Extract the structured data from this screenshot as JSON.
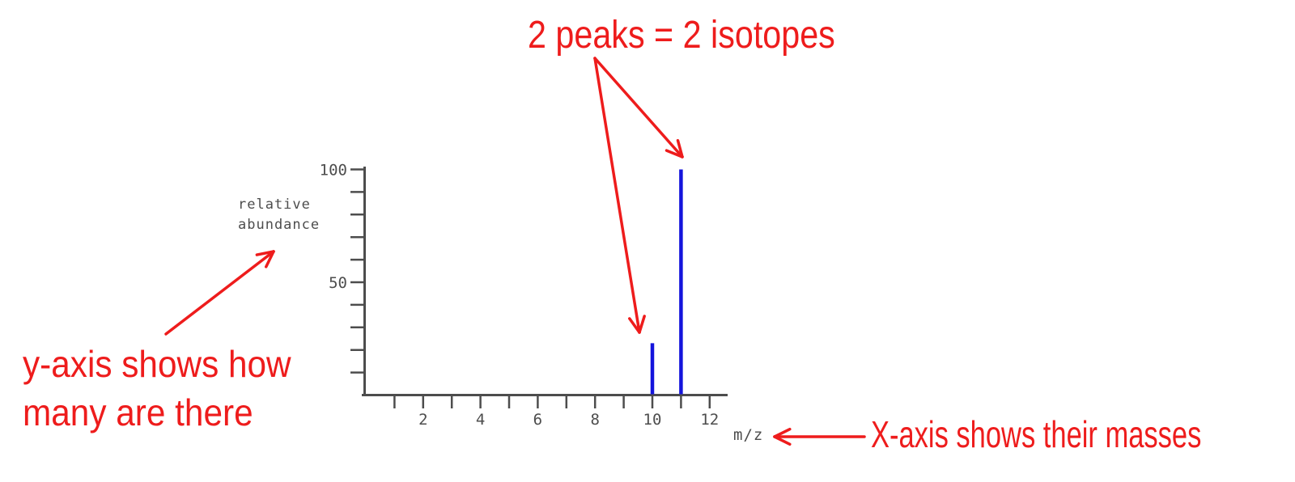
{
  "colors": {
    "background": "#ffffff",
    "annotation_red": "#ee1c1c",
    "peak_blue": "#1414dc",
    "axis_gray": "#4d4d4d"
  },
  "annotations": {
    "top": "2 peaks = 2 isotopes",
    "left_lines": [
      "y-axis shows how",
      "many are there"
    ],
    "right": "X-axis shows their masses"
  },
  "chart_data": {
    "type": "bar",
    "title": "",
    "xlabel": "m/z",
    "ylabel": "relative abundance",
    "ylabel_lines": [
      "relative",
      "abundance"
    ],
    "x": [
      10,
      11
    ],
    "values": [
      23,
      100
    ],
    "xlim": [
      0,
      12.7
    ],
    "ylim": [
      0,
      100
    ],
    "x_tick_min": 1,
    "x_tick_max": 12,
    "x_ticks_every": 1,
    "x_labeled_ticks": [
      2,
      4,
      6,
      8,
      10,
      12
    ],
    "y_ticks_every": 10,
    "y_labeled_ticks": [
      50,
      100
    ],
    "grid": false,
    "legend": null,
    "bar_style": "stick"
  }
}
